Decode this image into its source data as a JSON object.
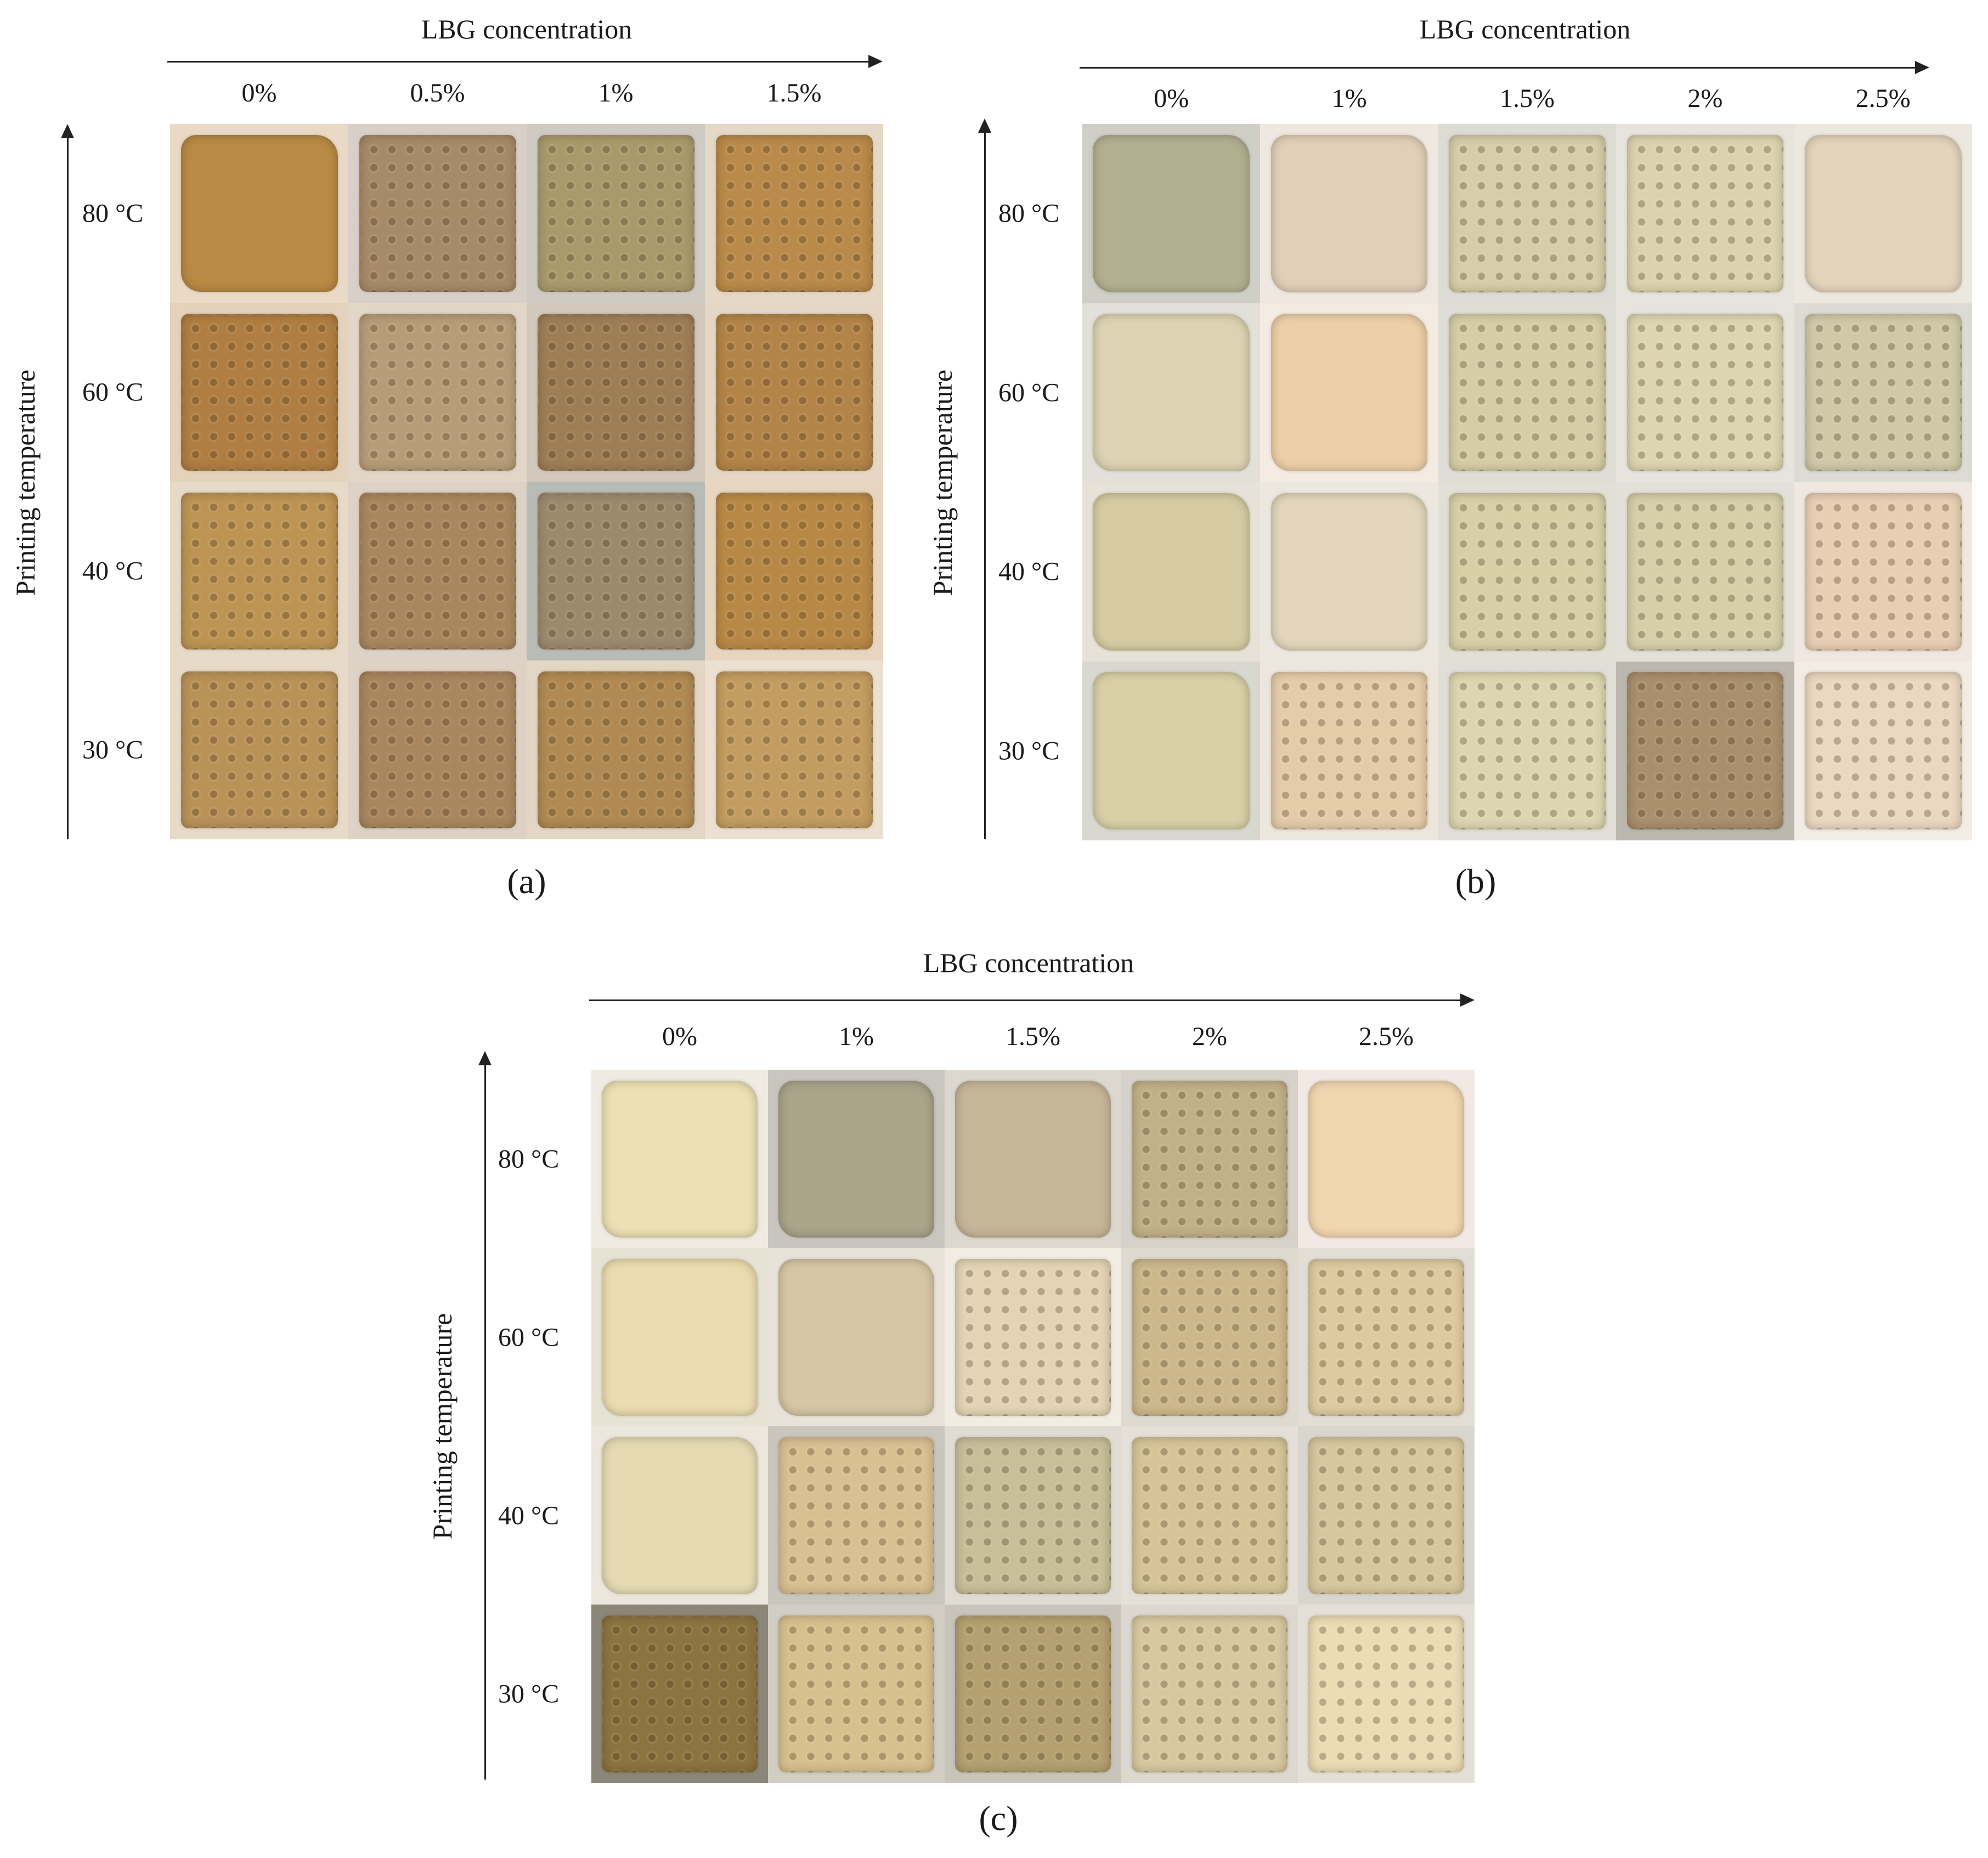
{
  "panels": [
    {
      "id": "a",
      "panel_label": "(a)",
      "x_axis_title": "LBG concentration",
      "y_axis_title": "Printing temperature",
      "concentrations": [
        "0%",
        "0.5%",
        "1%",
        "1.5%"
      ],
      "temperatures": [
        "80 °C",
        "60 °C",
        "40 °C",
        "30 °C"
      ],
      "sample_colors": [
        [
          "#b98b44",
          "#a78a68",
          "#a99a6c",
          "#b98a4a"
        ],
        [
          "#b07e42",
          "#b79c78",
          "#9e7e55",
          "#b38448"
        ],
        [
          "#bd9454",
          "#a9875e",
          "#9d8a6d",
          "#b88946"
        ],
        [
          "#b99258",
          "#a8875e",
          "#b08a52",
          "#c29c60"
        ]
      ],
      "mesh": [
        [
          false,
          true,
          true,
          true
        ],
        [
          true,
          true,
          true,
          true
        ],
        [
          true,
          true,
          true,
          true
        ],
        [
          true,
          true,
          true,
          true
        ]
      ],
      "cell_backgrounds": [
        [
          "#e9d9c6",
          "#d8d0c8",
          "#cfcbc3",
          "#e6d8c6"
        ],
        [
          "#e4d2bc",
          "#e2d6c8",
          "#d2c8bc",
          "#e6d7c4"
        ],
        [
          "#e7dac8",
          "#dcd2c6",
          "#b9bcb6",
          "#e7d5c0"
        ],
        [
          "#e8dac8",
          "#ddd2c4",
          "#e4d6c4",
          "#ebe0d2"
        ]
      ]
    },
    {
      "id": "b",
      "panel_label": "(b)",
      "x_axis_title": "LBG concentration",
      "y_axis_title": "Printing temperature",
      "concentrations": [
        "0%",
        "1%",
        "1.5%",
        "2%",
        "2.5%"
      ],
      "temperatures": [
        "80 °C",
        "60 °C",
        "40 °C",
        "30 °C"
      ],
      "sample_colors": [
        [
          "#b3b091",
          "#e2cfb8",
          "#d7cda8",
          "#dcd3ae",
          "#e4d4bc"
        ],
        [
          "#ddd3b2",
          "#edcfa8",
          "#d6cda6",
          "#ddd5b0",
          "#cfc9a8"
        ],
        [
          "#d6cba2",
          "#e3d6bc",
          "#d8cfa6",
          "#d6cfa8",
          "#e8cfb4"
        ],
        [
          "#d9d0a6",
          "#e4cca8",
          "#dcd6b0",
          "#a98f6c",
          "#ead8c0"
        ]
      ],
      "mesh": [
        [
          false,
          false,
          true,
          true,
          false
        ],
        [
          false,
          false,
          true,
          true,
          true
        ],
        [
          false,
          false,
          true,
          true,
          true
        ],
        [
          false,
          true,
          true,
          true,
          true
        ]
      ],
      "cell_backgrounds": [
        [
          "#cfcfc8",
          "#eee8e0",
          "#dcdcd4",
          "#e6e4dc",
          "#ece8e0"
        ],
        [
          "#e2e0d8",
          "#f4ece2",
          "#dfded6",
          "#e6e4dc",
          "#dcdcd4"
        ],
        [
          "#e6e2d8",
          "#ece8e0",
          "#e2e0d6",
          "#e2e0d8",
          "#f0e8e0"
        ],
        [
          "#d8d8d0",
          "#ece6dc",
          "#e0ded6",
          "#bcb8ae",
          "#f2ece4"
        ]
      ]
    },
    {
      "id": "c",
      "panel_label": "(c)",
      "x_axis_title": "LBG concentration",
      "y_axis_title": "Printing temperature",
      "concentrations": [
        "0%",
        "1%",
        "1.5%",
        "2%",
        "2.5%"
      ],
      "temperatures": [
        "80 °C",
        "60 °C",
        "40 °C",
        "30 °C"
      ],
      "sample_colors": [
        [
          "#ece0b4",
          "#a9a48a",
          "#c6b698",
          "#c2b088",
          "#f2d6b0"
        ],
        [
          "#ecdcb0",
          "#d6c6a4",
          "#e4d4b4",
          "#cdb88c",
          "#ddcaa0"
        ],
        [
          "#e6dab2",
          "#d9bf92",
          "#c8be98",
          "#d6c498",
          "#d8c69e"
        ],
        [
          "#8c7440",
          "#d6c08e",
          "#b4a070",
          "#d8c8a0",
          "#ecdcb4"
        ]
      ],
      "mesh": [
        [
          false,
          false,
          false,
          true,
          false
        ],
        [
          false,
          false,
          true,
          true,
          true
        ],
        [
          false,
          true,
          true,
          true,
          true
        ],
        [
          true,
          true,
          true,
          true,
          true
        ]
      ],
      "cell_backgrounds": [
        [
          "#efeae2",
          "#c8c6be",
          "#dcd8d0",
          "#d6d2ca",
          "#f2e8e4"
        ],
        [
          "#e6e2d4",
          "#e8e2d8",
          "#f2ece2",
          "#dedad0",
          "#e2ded6"
        ],
        [
          "#ece6dc",
          "#c9c6bd",
          "#e0dcd4",
          "#e4e0d8",
          "#d8d6ce"
        ],
        [
          "#8c8678",
          "#d2cec4",
          "#c8c4ba",
          "#dcd8d0",
          "#e4e0d8"
        ]
      ]
    }
  ]
}
